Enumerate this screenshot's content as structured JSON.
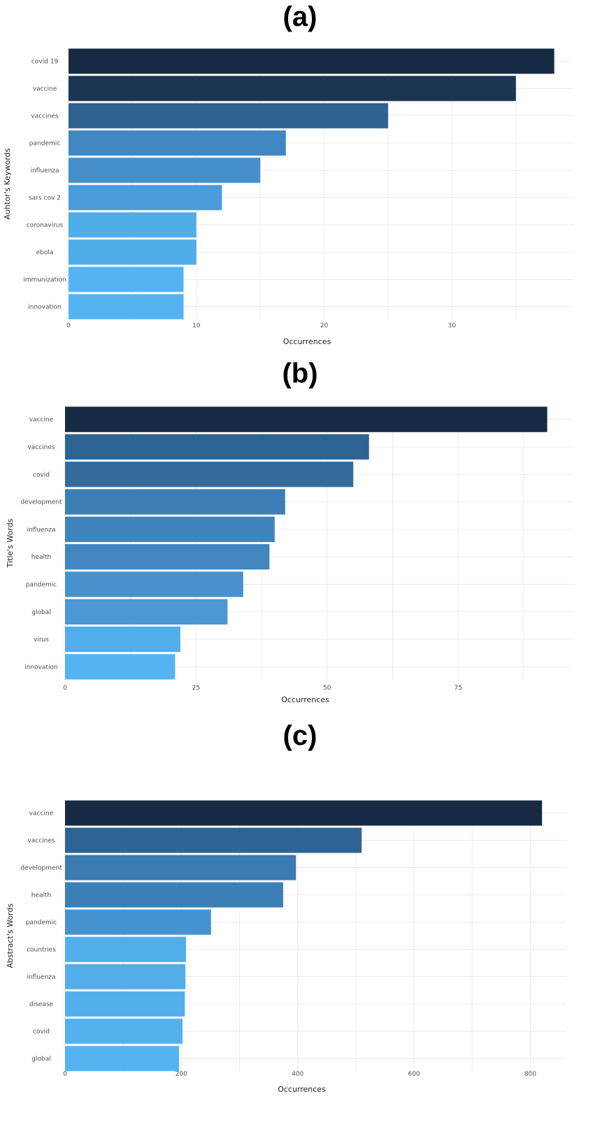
{
  "chart_data": [
    {
      "panel": "(a)",
      "type": "bar",
      "orientation": "horizontal",
      "xlabel": "Occurrences",
      "ylabel": "Auhtor's Keywords",
      "categories": [
        "covid 19",
        "vaccine",
        "vaccines",
        "pandemic",
        "influenza",
        "sars cov 2",
        "coronavirus",
        "ebola",
        "immunization",
        "innovation"
      ],
      "values": [
        38,
        35,
        25,
        17,
        15,
        12,
        10,
        10,
        9,
        9
      ],
      "xticks": [
        0,
        10,
        20,
        30
      ],
      "xlim": [
        0,
        39.5
      ],
      "grid": true,
      "colors": [
        "#172a43",
        "#1b3552",
        "#2e6290",
        "#4087c1",
        "#4590cb",
        "#4a9cd8",
        "#51ade8",
        "#51ade8",
        "#55b3f2",
        "#55b3f2"
      ]
    },
    {
      "panel": "(b)",
      "type": "bar",
      "orientation": "horizontal",
      "xlabel": "Occurrences",
      "ylabel": "Title's Words",
      "categories": [
        "vaccine",
        "vaccines",
        "covid",
        "development",
        "influenza",
        "health",
        "pandemic",
        "global",
        "virus",
        "innovation"
      ],
      "values": [
        92,
        58,
        55,
        42,
        40,
        39,
        34,
        31,
        22,
        21
      ],
      "xticks": [
        0,
        25,
        50,
        75
      ],
      "xlim": [
        0,
        97
      ],
      "grid": true,
      "colors": [
        "#172a43",
        "#2e6493",
        "#336b9d",
        "#3d7fb5",
        "#4084bc",
        "#4186be",
        "#4891cd",
        "#4b97d3",
        "#52aeeb",
        "#55b3f2"
      ]
    },
    {
      "panel": "(c)",
      "type": "bar",
      "orientation": "horizontal",
      "xlabel": "Occurrences",
      "ylabel": "Abstract's Words",
      "categories": [
        "vaccine",
        "vaccines",
        "development",
        "health",
        "pandemic",
        "countries",
        "influenza",
        "disease",
        "covid",
        "global"
      ],
      "values": [
        820,
        510,
        397,
        375,
        251,
        208,
        207,
        206,
        202,
        196
      ],
      "xticks": [
        0,
        200,
        400,
        600,
        800
      ],
      "xlim": [
        0,
        862
      ],
      "grid": true,
      "colors": [
        "#172a43",
        "#2e6493",
        "#3a7bb2",
        "#3c7fb6",
        "#4592d0",
        "#52aeeb",
        "#52aeeb",
        "#53afec",
        "#54b1ee",
        "#55b3f2"
      ]
    }
  ]
}
